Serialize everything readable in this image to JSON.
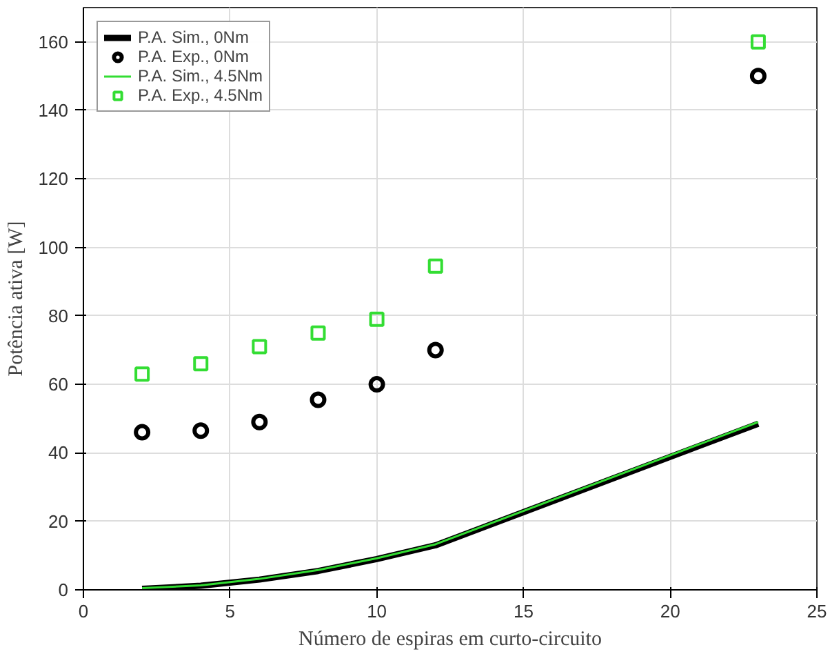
{
  "chart_data": {
    "type": "line",
    "xlabel": "Número de espiras em curto-circuito",
    "ylabel": "Potência ativa [W]",
    "x": [
      2,
      4,
      6,
      8,
      10,
      12,
      23
    ],
    "xlim": [
      0,
      25
    ],
    "xticks": [
      0,
      5,
      10,
      15,
      20,
      25
    ],
    "ylim": [
      0,
      170
    ],
    "yticks": [
      0,
      20,
      40,
      60,
      80,
      100,
      120,
      140,
      160
    ],
    "grid": true,
    "legend": "top left",
    "series": [
      {
        "name": "P.A. Sim., 0Nm",
        "color": "#000000",
        "marker": "none",
        "values": [
          0.3,
          1.2,
          3,
          5.5,
          9,
          13,
          48.5
        ]
      },
      {
        "name": "P.A. Exp., 0Nm",
        "type": "scatter",
        "color": "#000000",
        "marker": "circle",
        "values": [
          46,
          46.5,
          49,
          55.5,
          60,
          70,
          150
        ]
      },
      {
        "name": "P.A. Sim., 4.5Nm",
        "color": "#33dd33",
        "marker": "none",
        "values": [
          0.5,
          1.3,
          3.2,
          5.8,
          9.2,
          13.3,
          49
        ]
      },
      {
        "name": "P.A. Exp., 4.5Nm",
        "type": "scatter",
        "color": "#33dd33",
        "marker": "square",
        "values": [
          63,
          66,
          71,
          75,
          79,
          94.5,
          160
        ]
      }
    ]
  }
}
